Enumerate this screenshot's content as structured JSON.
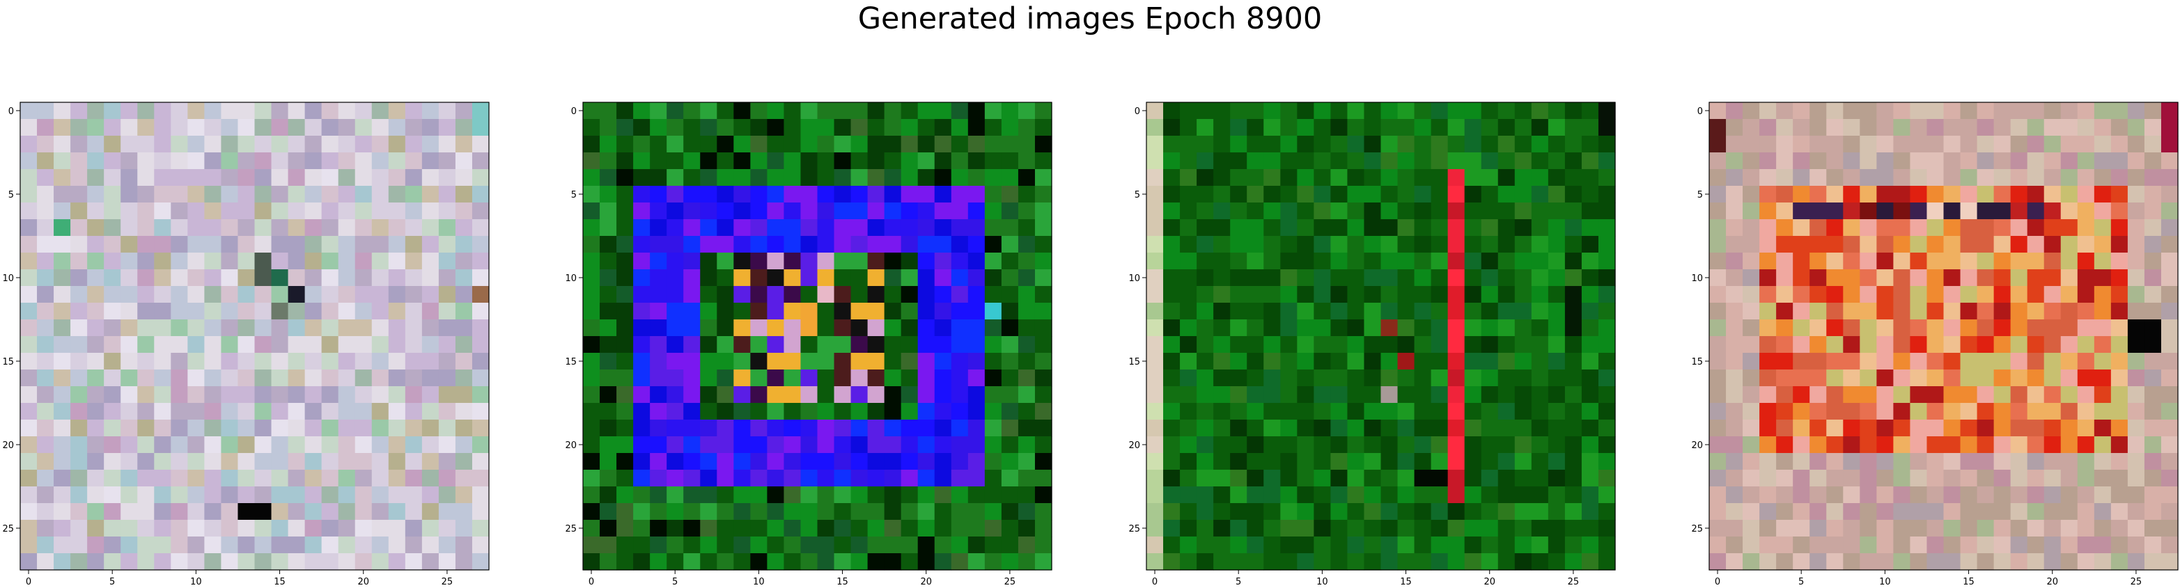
{
  "figure": {
    "title": "Generated images Epoch 8900"
  },
  "chart_data": [
    {
      "type": "heatmap",
      "panel": 1,
      "grid_size": 28,
      "x_ticks": [
        "0",
        "5",
        "10",
        "15",
        "20",
        "25"
      ],
      "y_ticks": [
        "0",
        "5",
        "10",
        "15",
        "20",
        "25"
      ],
      "palette": [
        "#c9b6d6",
        "#d8cfe0",
        "#bfc7d9",
        "#e3dde6",
        "#a9a1c2",
        "#c7d8c9",
        "#b8aac4",
        "#d6c2cf",
        "#9fb7a8",
        "#cdbfa9",
        "#a6c7d1",
        "#e7e2ee",
        "#c49fc0",
        "#9ac9a8",
        "#b6b08e"
      ],
      "palette_weights": [
        12,
        12,
        10,
        10,
        8,
        8,
        8,
        7,
        5,
        5,
        5,
        5,
        4,
        3,
        3
      ],
      "seed": 11,
      "features": [
        {
          "rect": [
            14,
            9,
            15,
            11
          ],
          "color": "#4b5a4f"
        },
        {
          "rect": [
            15,
            10,
            16,
            11
          ],
          "color": "#1f6b4c"
        },
        {
          "rect": [
            16,
            11,
            17,
            12
          ],
          "color": "#1a1a2a"
        },
        {
          "rect": [
            15,
            12,
            16,
            13
          ],
          "color": "#6c7a6a"
        },
        {
          "rect": [
            13,
            24,
            15,
            25
          ],
          "color": "#050505"
        },
        {
          "rect": [
            2,
            7,
            3,
            8
          ],
          "color": "#3fae76"
        },
        {
          "rect": [
            27,
            11,
            28,
            12
          ],
          "color": "#9a6a4a"
        },
        {
          "rect": [
            27,
            0,
            28,
            2
          ],
          "color": "#7ec9c6"
        }
      ]
    },
    {
      "type": "heatmap",
      "panel": 2,
      "grid_size": 28,
      "x_ticks": [
        "0",
        "5",
        "10",
        "15",
        "20",
        "25"
      ],
      "y_ticks": [
        "0",
        "5",
        "10",
        "15",
        "20",
        "25"
      ],
      "palette": [
        "#0b5a0b",
        "#1e7a1e",
        "#0e8f1e",
        "#063d06",
        "#2aa53a",
        "#145c2a",
        "#000d00",
        "#3a6a2a"
      ],
      "palette_weights": [
        14,
        12,
        10,
        8,
        6,
        6,
        4,
        4
      ],
      "seed": 23,
      "features": [
        {
          "ring": [
            3,
            5,
            24,
            23
          ],
          "thickness": 4,
          "palette": [
            "#1a10ff",
            "#2b12f2",
            "#3414e8",
            "#5a1ee6",
            "#0d0ae0",
            "#7a18f0",
            "#1030ff"
          ]
        },
        {
          "rect": [
            9,
            9,
            18,
            18
          ],
          "palette": [
            "#111111",
            "#0b5a0b",
            "#4c1c1c",
            "#d2a4d0",
            "#f0b030",
            "#2aa53a",
            "#5a1ee6",
            "#3b0a4a"
          ]
        },
        {
          "rect": [
            13,
            12,
            14,
            14
          ],
          "color": "#f2a634"
        },
        {
          "rect": [
            14,
            11,
            15,
            12
          ],
          "color": "#e8b8c8"
        },
        {
          "rect": [
            24,
            12,
            25,
            13
          ],
          "color": "#38c8d0"
        }
      ]
    },
    {
      "type": "heatmap",
      "panel": 3,
      "grid_size": 28,
      "x_ticks": [
        "0",
        "5",
        "10",
        "15",
        "20",
        "25"
      ],
      "y_ticks": [
        "0",
        "5",
        "10",
        "15",
        "20",
        "25"
      ],
      "palette": [
        "#0a5c0a",
        "#127012",
        "#0b8a1a",
        "#064a06",
        "#1c9a22",
        "#0f6b2a",
        "#2e7a1e",
        "#043604"
      ],
      "palette_weights": [
        14,
        12,
        10,
        8,
        5,
        5,
        4,
        3
      ],
      "seed": 37,
      "features": [
        {
          "rect": [
            0,
            0,
            1,
            28
          ],
          "palette": [
            "#b8d49a",
            "#cfe0b0",
            "#d6c8b0",
            "#a8c890",
            "#e0d0c0"
          ]
        },
        {
          "rect": [
            18,
            4,
            19,
            24
          ],
          "palette": [
            "#e01c2a",
            "#f0233a",
            "#c81828",
            "#ff2a40"
          ]
        },
        {
          "rect": [
            14,
            13,
            15,
            14
          ],
          "color": "#8a2a1a"
        },
        {
          "rect": [
            15,
            15,
            16,
            16
          ],
          "color": "#a01818"
        },
        {
          "rect": [
            14,
            17,
            15,
            18
          ],
          "color": "#a89a98"
        },
        {
          "rect": [
            25,
            11,
            26,
            14
          ],
          "color": "#041a04"
        },
        {
          "rect": [
            27,
            0,
            28,
            2
          ],
          "color": "#061206"
        },
        {
          "rect": [
            16,
            22,
            18,
            23
          ],
          "color": "#020a02"
        }
      ]
    },
    {
      "type": "heatmap",
      "panel": 4,
      "grid_size": 28,
      "x_ticks": [
        "0",
        "5",
        "10",
        "15",
        "20",
        "25"
      ],
      "y_ticks": [
        "0",
        "5",
        "10",
        "15",
        "20",
        "25"
      ],
      "palette": [
        "#c9a6a0",
        "#d8b0a8",
        "#b8a090",
        "#d4c2b0",
        "#c090a0",
        "#a8b890",
        "#e0c0b8",
        "#b0a0a8"
      ],
      "palette_weights": [
        12,
        10,
        10,
        10,
        8,
        6,
        6,
        6
      ],
      "seed": 49,
      "features": [
        {
          "rect": [
            3,
            5,
            25,
            21
          ],
          "palette": [
            "#e0401a",
            "#f08a30",
            "#f0b060",
            "#e02010",
            "#d86040",
            "#f0c090",
            "#b01818",
            "#e87050",
            "#f0a8a0",
            "#c8c070"
          ]
        },
        {
          "rect": [
            5,
            6,
            21,
            7
          ],
          "palette": [
            "#2a1a3a",
            "#7a1010",
            "#c02020",
            "#3a2050",
            "#f0d0c0"
          ]
        },
        {
          "rect": [
            25,
            13,
            27,
            15
          ],
          "color": "#050505"
        },
        {
          "rect": [
            27,
            0,
            28,
            3
          ],
          "color": "#a0103a"
        },
        {
          "rect": [
            0,
            1,
            1,
            3
          ],
          "color": "#5a1a1a"
        }
      ]
    }
  ]
}
